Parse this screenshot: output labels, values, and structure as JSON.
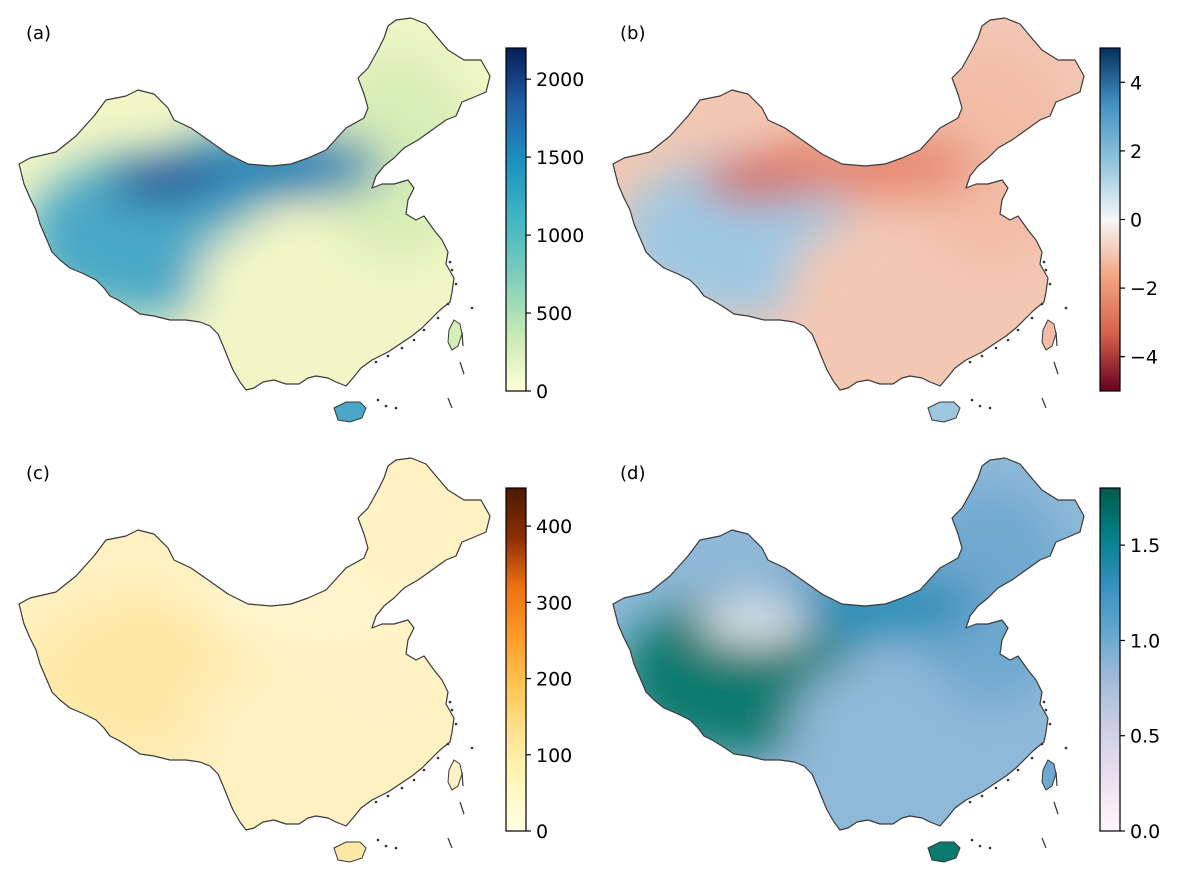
{
  "panels": [
    {
      "id": "a",
      "label": "(a)",
      "colormap": "YlGnBu",
      "colors": [
        "#ffffd9",
        "#c7e9b4",
        "#7fcdbb",
        "#41b6c4",
        "#1d91c0",
        "#225ea8",
        "#081d58"
      ],
      "map_tint": {
        "west": "#4aa8c6",
        "center": "#f2f6c6",
        "east": "#d8eeb7",
        "north": "#2a83b6",
        "taklamakan": "#1e3f90"
      },
      "colorbar": {
        "min": 0,
        "max": 2200,
        "ticks": [
          0,
          500,
          1000,
          1500,
          2000
        ],
        "tick_labels": [
          "0",
          "500",
          "1000",
          "1500",
          "2000"
        ]
      }
    },
    {
      "id": "b",
      "label": "(b)",
      "colormap": "RdBu",
      "colors": [
        "#67001f",
        "#d6604d",
        "#f4a582",
        "#f7f7f7",
        "#92c5de",
        "#4393c3",
        "#053061"
      ],
      "map_tint": {
        "west": "#9ec8e2",
        "center": "#f3c8b3",
        "east": "#f2bca6",
        "north": "#e78a73",
        "taklamakan": "#d45b4a"
      },
      "colorbar": {
        "min": -5,
        "max": 5,
        "ticks": [
          -4,
          -2,
          0,
          2,
          4
        ],
        "tick_labels": [
          "−4",
          "−2",
          "0",
          "2",
          "4"
        ]
      }
    },
    {
      "id": "c",
      "label": "(c)",
      "colormap": "YlOrBr",
      "colors": [
        "#ffffe5",
        "#fff7bc",
        "#fee391",
        "#fec44f",
        "#fe9929",
        "#ec7014",
        "#8c2d04",
        "#4a1a02"
      ],
      "map_tint": {
        "west": "#fde8a6",
        "center": "#fff1c2",
        "east": "#fff3c6",
        "north": "#fff6cf",
        "taklamakan": "#fde7a0"
      },
      "colorbar": {
        "min": 0,
        "max": 450,
        "ticks": [
          0,
          100,
          200,
          300,
          400
        ],
        "tick_labels": [
          "0",
          "100",
          "200",
          "300",
          "400"
        ]
      }
    },
    {
      "id": "d",
      "label": "(d)",
      "colormap": "PuBuGn",
      "colors": [
        "#fff7fb",
        "#ece2f0",
        "#d0d1e6",
        "#a6bddb",
        "#67a9cf",
        "#3690c0",
        "#02818a",
        "#015a4a"
      ],
      "map_tint": {
        "west": "#0b7a6e",
        "center": "#8fb9d8",
        "east": "#6fa8cf",
        "north": "#2f8fb8",
        "taklamakan": "#eef0f6"
      },
      "colorbar": {
        "min": 0.0,
        "max": 1.8,
        "ticks": [
          0.0,
          0.5,
          1.0,
          1.5
        ],
        "tick_labels": [
          "0.0",
          "0.5",
          "1.0",
          "1.5"
        ]
      }
    }
  ]
}
